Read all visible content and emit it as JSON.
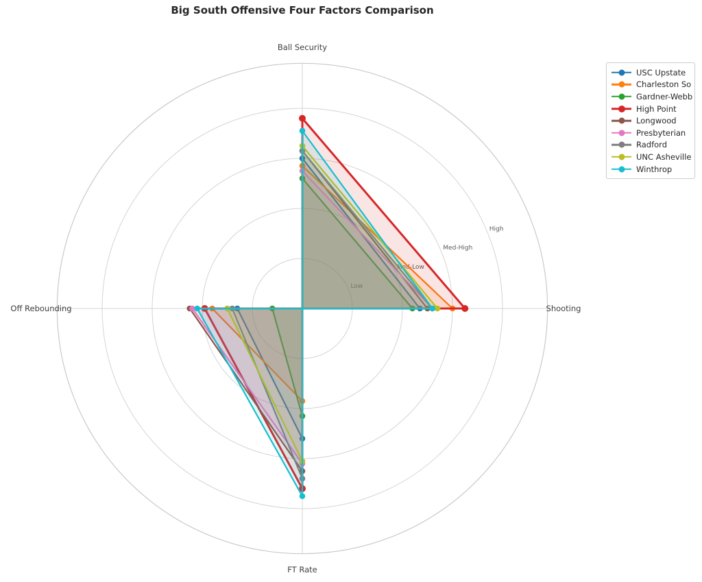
{
  "title": "Big South Offensive Four Factors Comparison",
  "chart_data": {
    "type": "radar",
    "title": "Big South Offensive Four Factors Comparison",
    "axes": [
      {
        "label": "Ball Security",
        "angle_deg": 90
      },
      {
        "label": "Shooting",
        "angle_deg": 0
      },
      {
        "label": "Off Rebounding",
        "angle_deg": 180
      },
      {
        "label": "FT Rate",
        "angle_deg": 270
      }
    ],
    "r_ticks": [
      {
        "label": "Low",
        "value": 1
      },
      {
        "label": "Med-Low",
        "value": 2
      },
      {
        "label": "Med-High",
        "value": 3
      },
      {
        "label": "High",
        "value": 4
      }
    ],
    "r_max": 4.9,
    "tick_label_angle_deg": 22.5,
    "grid": true,
    "fill_opacity": 0.12,
    "legend_position": "upper-right",
    "series": [
      {
        "name": "USC Upstate",
        "color": "#1f77b4",
        "line_width": 2.2,
        "values": [
          3.0,
          2.35,
          1.3,
          2.6
        ]
      },
      {
        "name": "Charleston So",
        "color": "#ff7f0e",
        "line_width": 2.2,
        "values": [
          2.85,
          3.0,
          1.8,
          1.85
        ]
      },
      {
        "name": "Gardner-Webb",
        "color": "#2ca02c",
        "line_width": 2.2,
        "values": [
          2.6,
          2.2,
          0.6,
          2.15
        ]
      },
      {
        "name": "High Point",
        "color": "#d62728",
        "line_width": 3.0,
        "values": [
          3.8,
          3.25,
          1.95,
          3.6
        ]
      },
      {
        "name": "Longwood",
        "color": "#8c564b",
        "line_width": 2.2,
        "values": [
          3.15,
          2.5,
          2.25,
          3.25
        ]
      },
      {
        "name": "Presbyterian",
        "color": "#e377c2",
        "line_width": 2.2,
        "values": [
          2.75,
          2.6,
          2.2,
          3.1
        ]
      },
      {
        "name": "Radford",
        "color": "#7f7f7f",
        "line_width": 2.2,
        "values": [
          3.15,
          2.6,
          1.4,
          3.4
        ]
      },
      {
        "name": "UNC Asheville",
        "color": "#bcbd22",
        "line_width": 2.2,
        "values": [
          3.25,
          2.7,
          1.5,
          3.05
        ]
      },
      {
        "name": "Winthrop",
        "color": "#17becf",
        "line_width": 2.2,
        "values": [
          3.55,
          2.6,
          2.1,
          3.75
        ]
      }
    ]
  }
}
